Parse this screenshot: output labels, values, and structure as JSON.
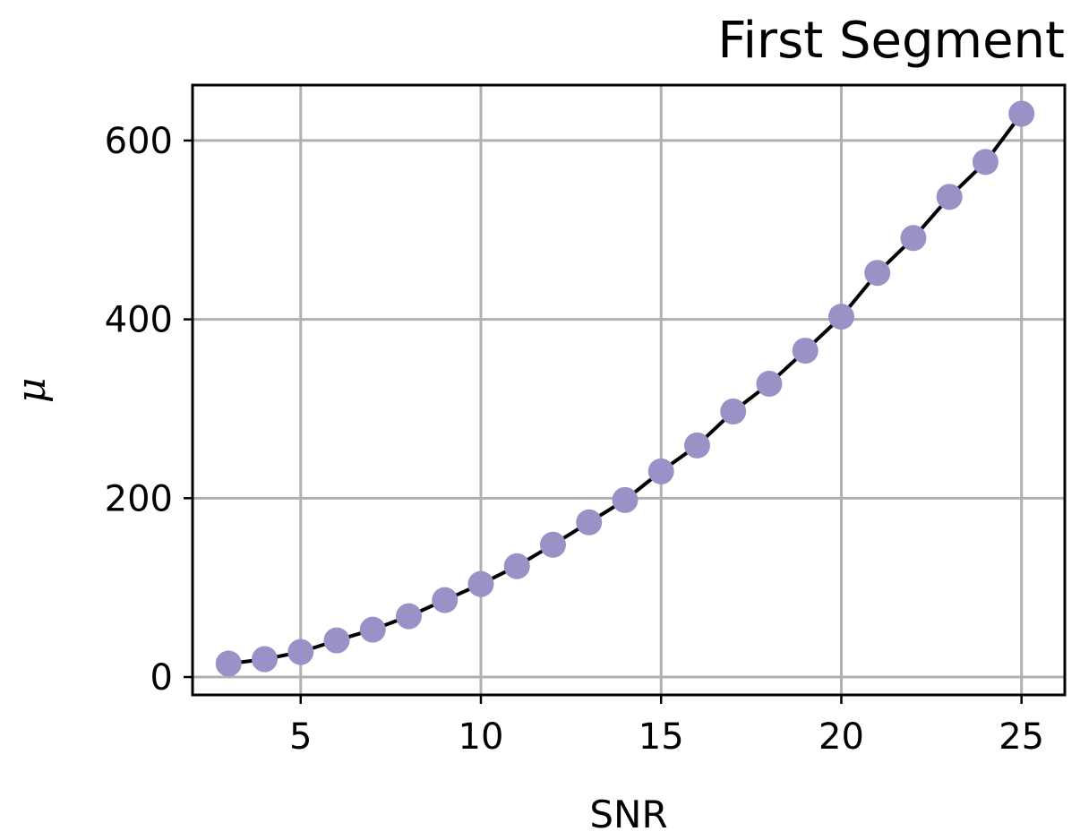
{
  "chart_data": {
    "type": "line",
    "title": "First Segment",
    "xlabel": "SNR",
    "ylabel": "μ",
    "xlim": [
      2.0,
      26.2
    ],
    "ylim": [
      -20,
      662
    ],
    "grid": true,
    "x_ticks": [
      5,
      10,
      15,
      20,
      25
    ],
    "y_ticks": [
      0,
      200,
      400,
      600
    ],
    "x_tick_labels": [
      "5",
      "10",
      "15",
      "20",
      "25"
    ],
    "y_tick_labels": [
      "0",
      "200",
      "400",
      "600"
    ],
    "series": [
      {
        "x": [
          3,
          4,
          5,
          6,
          7,
          8,
          9,
          10,
          11,
          12,
          13,
          14,
          15,
          16,
          17,
          18,
          19,
          20,
          21,
          22,
          23,
          24,
          25
        ],
        "y": [
          15,
          20,
          28,
          41,
          53,
          68,
          86,
          104,
          124,
          148,
          173,
          198,
          230,
          259,
          297,
          328,
          365,
          403,
          452,
          491,
          537,
          576,
          630
        ],
        "line_color": "#000000",
        "marker_color": "#9b91c6"
      }
    ]
  }
}
